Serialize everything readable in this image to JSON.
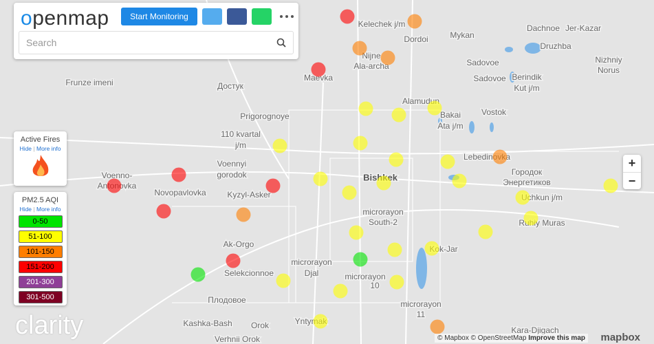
{
  "header": {
    "logo": "openmap",
    "button": "Start Monitoring",
    "search_placeholder": "Search"
  },
  "fires_panel": {
    "title": "Active Fires",
    "hide": "Hide",
    "more_info": "More info"
  },
  "aqi_legend": {
    "title": "PM2.5 AQI",
    "hide": "Hide",
    "more_info": "More info",
    "items": [
      {
        "label": "0-50",
        "color": "#00e400"
      },
      {
        "label": "51-100",
        "color": "#ffff00"
      },
      {
        "label": "101-150",
        "color": "#ff7e00"
      },
      {
        "label": "151-200",
        "color": "#ff0000"
      },
      {
        "label": "201-300",
        "color": "#8f3f97"
      },
      {
        "label": "301-500",
        "color": "#7e0023"
      }
    ]
  },
  "map": {
    "places": [
      "Kelechek j/m",
      "Dordoi",
      "Mykan",
      "Dachnoe",
      "Jer-Kazar",
      "Druzhba",
      "Nizhniy",
      "Norus",
      "Nijne",
      "Ala-archa",
      "Sadovoe",
      "Berindik",
      "Kut j/m",
      "Sadovoe",
      "Frunze imeni",
      "Достук",
      "Maevka",
      "Alamudun",
      "Vostok",
      "Bakai",
      "Ata j/m",
      "Prigorognoye",
      "110 kvartal",
      "j/m",
      "Voennyi",
      "gorodok",
      "Lebedinovka",
      "Городок",
      "Энергетиков",
      "Voenno-",
      "Antonovka",
      "Novopavlovka",
      "Kyzyl-Asker",
      "Bishkek",
      "Uchkun j/m",
      "microrayon",
      "South-2",
      "Ruhiy Muras",
      "Ak-Orgo",
      "Kok-Jar",
      "microrayon",
      "Djal",
      "Selekcionnoe",
      "microrayon",
      "10",
      "Плодовое",
      "microrayon",
      "11",
      "Kashka-Bash",
      "Orok",
      "Yntymak",
      "Verhnii Orok",
      "Kara-Djigach"
    ]
  },
  "brand": "clarity",
  "zoom": {
    "in": "+",
    "out": "−"
  },
  "attribution": {
    "mapbox": "© Mapbox",
    "osm": "© OpenStreetMap",
    "improve": "Improve this map",
    "logo": "mapbox"
  }
}
